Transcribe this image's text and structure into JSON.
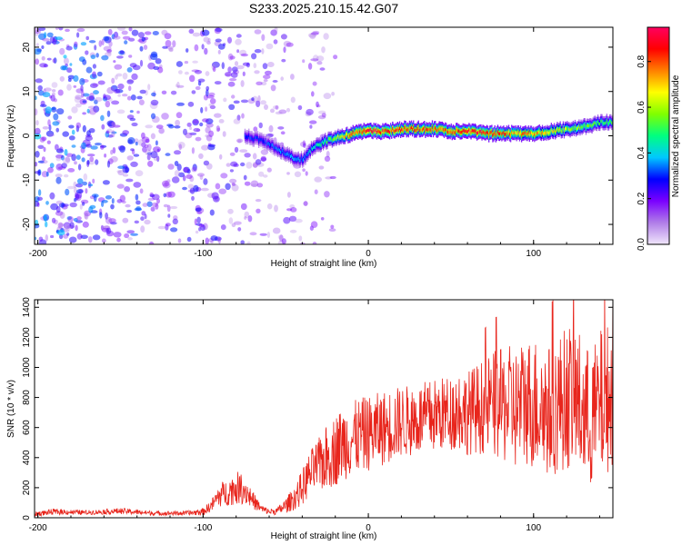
{
  "title": "S233.2025.210.15.42.G07",
  "chart_data": [
    {
      "type": "heatmap",
      "xlabel": "Height of straight line (km)",
      "ylabel": "Frequency (Hz)",
      "xlim": [
        -202,
        148
      ],
      "ylim": [
        -24.5,
        24.5
      ],
      "xticks": [
        -200,
        -100,
        0,
        100
      ],
      "yticks": [
        -20,
        -10,
        0,
        10,
        20
      ],
      "colorbar": {
        "label": "Normalized spectral amplitude",
        "range": [
          0.0,
          0.95
        ],
        "ticks": [
          0.0,
          0.2,
          0.4,
          0.6,
          0.8
        ],
        "colormap": [
          "#f0e6fb",
          "#b07de8",
          "#7a00ff",
          "#0000ff",
          "#00c8ff",
          "#00ff80",
          "#80ff00",
          "#ffff00",
          "#ff8000",
          "#ff0000",
          "#ff0060"
        ]
      },
      "ridge": {
        "x": [
          -75,
          -65,
          -55,
          -50,
          -45,
          -40,
          -35,
          -30,
          -25,
          -20,
          -15,
          -10,
          -5,
          0,
          10,
          20,
          30,
          40,
          50,
          60,
          70,
          80,
          90,
          100,
          110,
          120,
          130,
          140,
          148
        ],
        "y": [
          0,
          -1,
          -3,
          -4,
          -5,
          -5.5,
          -3,
          -2,
          -1,
          -0.5,
          0,
          0.5,
          1,
          1,
          1,
          1.5,
          1.5,
          1.5,
          1,
          1,
          0.5,
          0.5,
          0.5,
          0.5,
          1,
          1.5,
          2,
          3,
          3
        ],
        "amplitude": [
          0.3,
          0.3,
          0.35,
          0.35,
          0.4,
          0.35,
          0.4,
          0.45,
          0.5,
          0.6,
          0.7,
          0.8,
          0.85,
          0.9,
          0.85,
          0.85,
          0.8,
          0.8,
          0.8,
          0.85,
          0.85,
          0.8,
          0.75,
          0.75,
          0.7,
          0.6,
          0.55,
          0.5,
          0.5
        ]
      },
      "noise": {
        "x_range": [
          -202,
          -20
        ],
        "amplitude": 0.2
      }
    },
    {
      "type": "line",
      "xlabel": "Height of straight line (km)",
      "ylabel": "SNR (10 * v/v)",
      "xlim": [
        -202,
        148
      ],
      "ylim": [
        0,
        1450
      ],
      "xticks": [
        -200,
        -100,
        0,
        100
      ],
      "yticks": [
        0,
        200,
        400,
        600,
        800,
        1000,
        1200,
        1400
      ],
      "color": "#e8251c",
      "series": [
        {
          "x": [
            -202,
            -190,
            -170,
            -150,
            -130,
            -110,
            -100,
            -95,
            -90,
            -85,
            -80,
            -75,
            -70,
            -65,
            -60,
            -55,
            -50,
            -45,
            -40,
            -35,
            -30,
            -25,
            -20,
            -15,
            -10,
            -5,
            0,
            5,
            10,
            20,
            30,
            40,
            50,
            55,
            60,
            65,
            70,
            75,
            80,
            85,
            90,
            95,
            100,
            105,
            110,
            115,
            120,
            125,
            130,
            135,
            140,
            145,
            148
          ],
          "y": [
            25,
            40,
            35,
            45,
            30,
            30,
            40,
            80,
            150,
            170,
            200,
            190,
            120,
            60,
            40,
            45,
            80,
            130,
            200,
            300,
            350,
            400,
            450,
            500,
            520,
            550,
            560,
            580,
            600,
            640,
            650,
            680,
            700,
            720,
            700,
            720,
            740,
            760,
            740,
            750,
            720,
            780,
            760,
            740,
            700,
            760,
            800,
            820,
            700,
            650,
            750,
            800,
            780
          ],
          "noise_amplitude": [
            15,
            20,
            15,
            20,
            15,
            15,
            25,
            40,
            80,
            90,
            110,
            100,
            60,
            30,
            20,
            25,
            50,
            80,
            120,
            150,
            180,
            220,
            240,
            250,
            250,
            250,
            250,
            250,
            250,
            240,
            240,
            250,
            250,
            280,
            280,
            300,
            320,
            350,
            380,
            400,
            420,
            430,
            450,
            450,
            450,
            460,
            480,
            500,
            480,
            460,
            500,
            500,
            480
          ]
        }
      ]
    }
  ]
}
